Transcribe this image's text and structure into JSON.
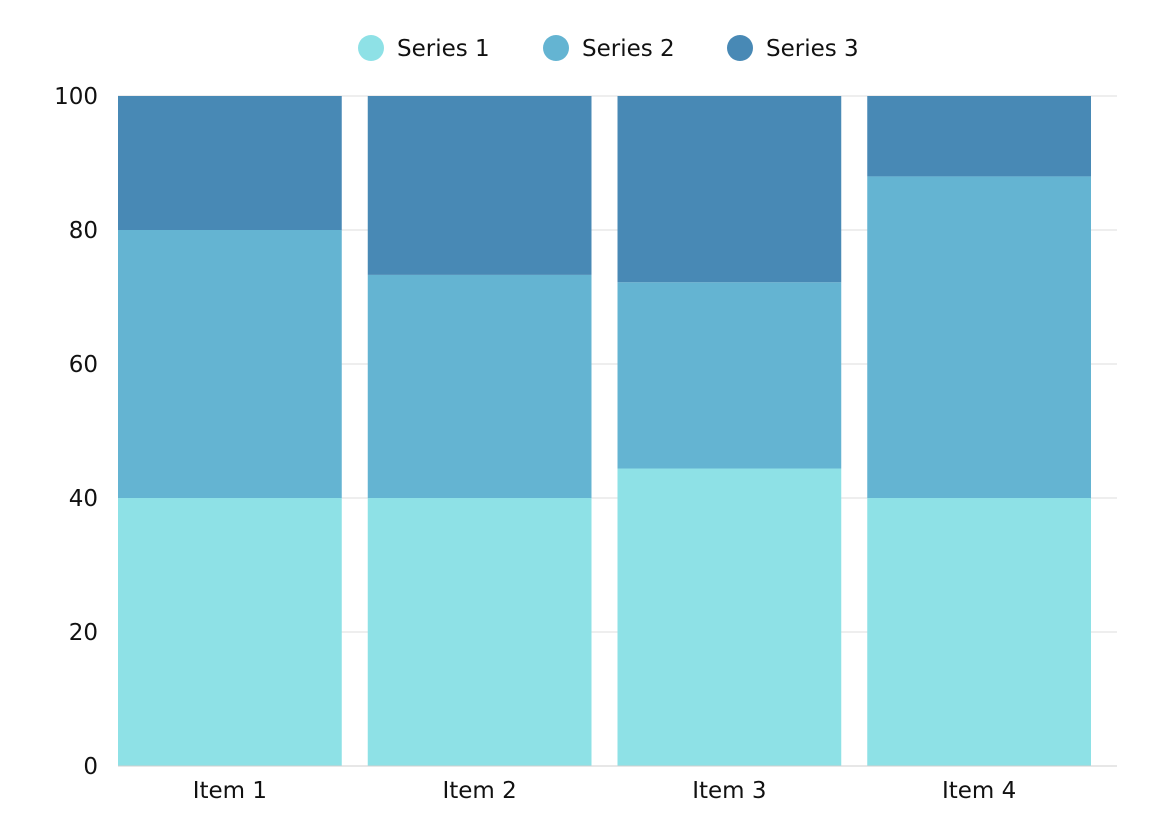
{
  "chart_data": {
    "type": "bar",
    "stacked": true,
    "categories": [
      "Item 1",
      "Item 2",
      "Item 3",
      "Item 4"
    ],
    "series": [
      {
        "name": "Series 1",
        "values": [
          40,
          40,
          44.4,
          40
        ],
        "color": "#8ee1e6"
      },
      {
        "name": "Series 2",
        "values": [
          40,
          33.3,
          27.8,
          48
        ],
        "color": "#64b4d2"
      },
      {
        "name": "Series 3",
        "values": [
          20,
          26.7,
          27.8,
          12
        ],
        "color": "#4889b5"
      }
    ],
    "ylim": [
      0,
      100
    ],
    "yticks": [
      "0",
      "20",
      "40",
      "60",
      "80",
      "100"
    ],
    "grid": true,
    "legend": "top-center"
  }
}
